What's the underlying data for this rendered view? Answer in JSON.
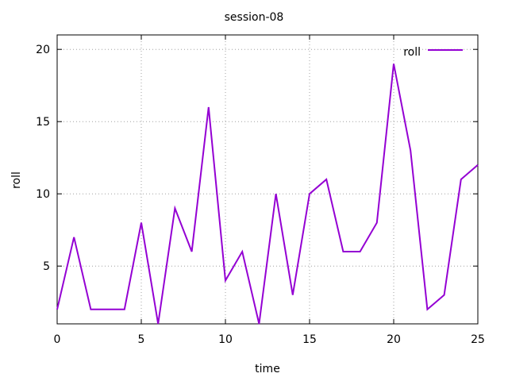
{
  "chart_data": {
    "type": "line",
    "title": "session-08",
    "xlabel": "time",
    "ylabel": "roll",
    "xlim": [
      0,
      25
    ],
    "ylim": [
      1,
      21
    ],
    "xticks": [
      0,
      5,
      10,
      15,
      20,
      25
    ],
    "yticks": [
      5,
      10,
      15,
      20
    ],
    "grid": true,
    "legend_position": "top-right",
    "series": [
      {
        "name": "roll",
        "color": "#9400d3",
        "x": [
          0,
          1,
          2,
          3,
          4,
          5,
          6,
          7,
          8,
          9,
          10,
          11,
          12,
          13,
          14,
          15,
          16,
          17,
          18,
          19,
          20,
          21,
          22,
          23,
          24,
          25
        ],
        "y": [
          2,
          7,
          2,
          2,
          2,
          8,
          1,
          9,
          6,
          16,
          4,
          6,
          1,
          10,
          3,
          10,
          11,
          6,
          6,
          8,
          19,
          13,
          2,
          3,
          11,
          12
        ]
      }
    ]
  }
}
